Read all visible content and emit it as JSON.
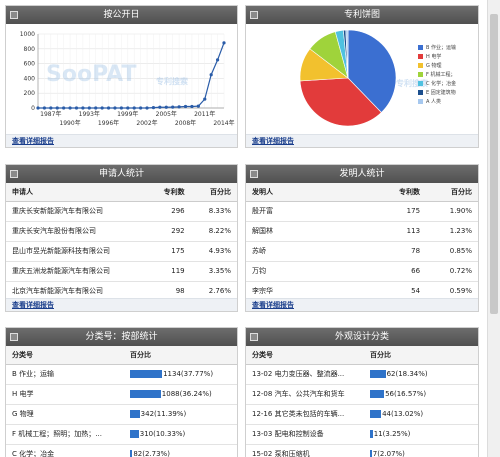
{
  "timeline": {
    "title": "按公开日",
    "link": "查看详细报告",
    "y_ticks": [
      "0",
      "200",
      "400",
      "600",
      "800",
      "1000"
    ],
    "x_ticks_top": [
      "1987年",
      "1993年",
      "1999年",
      "2005年",
      "2011年"
    ],
    "x_ticks_bottom": [
      "1990年",
      "1996年",
      "2002年",
      "2008年",
      "2014年"
    ],
    "watermark": "SooPAT",
    "watermark_sub": "专利搜索",
    "chart_data": {
      "type": "line",
      "x": [
        1985,
        1986,
        1987,
        1988,
        1989,
        1990,
        1991,
        1992,
        1993,
        1994,
        1995,
        1996,
        1997,
        1998,
        1999,
        2000,
        2001,
        2002,
        2003,
        2004,
        2005,
        2006,
        2007,
        2008,
        2009,
        2010,
        2011,
        2012,
        2013,
        2014
      ],
      "values": [
        0,
        0,
        0,
        0,
        0,
        0,
        0,
        0,
        0,
        0,
        0,
        0,
        0,
        0,
        0,
        0,
        0,
        0,
        5,
        10,
        10,
        12,
        15,
        20,
        20,
        25,
        120,
        450,
        650,
        880
      ],
      "ylim": [
        0,
        1000
      ],
      "color": "#2a5ca8"
    }
  },
  "pie": {
    "title": "专利饼图",
    "link": "查看详细报告",
    "watermark_sub": "专利搜索",
    "legend": [
      {
        "label": "B 作业；运输",
        "color": "#3b6fd1"
      },
      {
        "label": "H 电学",
        "color": "#e23b3b"
      },
      {
        "label": "G 物理",
        "color": "#f2c12e"
      },
      {
        "label": "F 机械工程；",
        "color": "#9fd33b"
      },
      {
        "label": "C 化学；冶金",
        "color": "#4fc1e0"
      },
      {
        "label": "E 固定建筑物",
        "color": "#1c4f8e"
      },
      {
        "label": "A 人类",
        "color": "#a6c8ef"
      }
    ],
    "chart_data": {
      "type": "pie",
      "categories": [
        "B 作业；运输",
        "H 电学",
        "G 物理",
        "F 机械工程；",
        "C 化学；冶金",
        "E 固定建筑物",
        "A 人类"
      ],
      "values": [
        37.77,
        36.24,
        11.39,
        10.33,
        2.73,
        0.8,
        0.74
      ]
    }
  },
  "applicants": {
    "title": "申请人统计",
    "columns": [
      "申请人",
      "专利数",
      "百分比"
    ],
    "rows": [
      [
        "重庆长安新能源汽车有限公司",
        "296",
        "8.33%"
      ],
      [
        "重庆长安汽车股份有限公司",
        "292",
        "8.22%"
      ],
      [
        "昆山市昱光新能源科技有限公司",
        "175",
        "4.93%"
      ],
      [
        "重庆五洲龙新能源汽车有限公司",
        "119",
        "3.35%"
      ],
      [
        "北京汽车新能源汽车有限公司",
        "98",
        "2.76%"
      ]
    ],
    "link": "查看详细报告"
  },
  "inventors": {
    "title": "发明人统计",
    "columns": [
      "发明人",
      "专利数",
      "百分比"
    ],
    "rows": [
      [
        "殷开富",
        "175",
        "1.90%"
      ],
      [
        "解国林",
        "113",
        "1.23%"
      ],
      [
        "苏峤",
        "78",
        "0.85%"
      ],
      [
        "万钧",
        "66",
        "0.72%"
      ],
      [
        "李宗华",
        "54",
        "0.59%"
      ]
    ],
    "link": "查看详细报告"
  },
  "ipc": {
    "title": "分类号：按部统计",
    "columns": [
      "分类号",
      "百分比"
    ],
    "rows": [
      {
        "label": "B 作业；运输",
        "value": "1134(37.77%)",
        "pct": 37.77
      },
      {
        "label": "H 电学",
        "value": "1088(36.24%)",
        "pct": 36.24
      },
      {
        "label": "G 物理",
        "value": "342(11.39%)",
        "pct": 11.39
      },
      {
        "label": "F 机械工程；照明；加热；...",
        "value": "310(10.33%)",
        "pct": 10.33
      },
      {
        "label": "C 化学；冶金",
        "value": "82(2.73%)",
        "pct": 2.73
      }
    ]
  },
  "design": {
    "title": "外观设计分类",
    "columns": [
      "分类号",
      "百分比"
    ],
    "rows": [
      {
        "label": "13-02 电力变压器、整流器...",
        "value": "62(18.34%)",
        "pct": 18.34
      },
      {
        "label": "12-08 汽车、公共汽车和货车",
        "value": "56(16.57%)",
        "pct": 16.57
      },
      {
        "label": "12-16 其它类未包括的车辆...",
        "value": "44(13.02%)",
        "pct": 13.02
      },
      {
        "label": "13-03 配电和控制设备",
        "value": "11(3.25%)",
        "pct": 3.25
      },
      {
        "label": "15-02 泵和压缩机",
        "value": "7(2.07%)",
        "pct": 2.07
      }
    ]
  }
}
